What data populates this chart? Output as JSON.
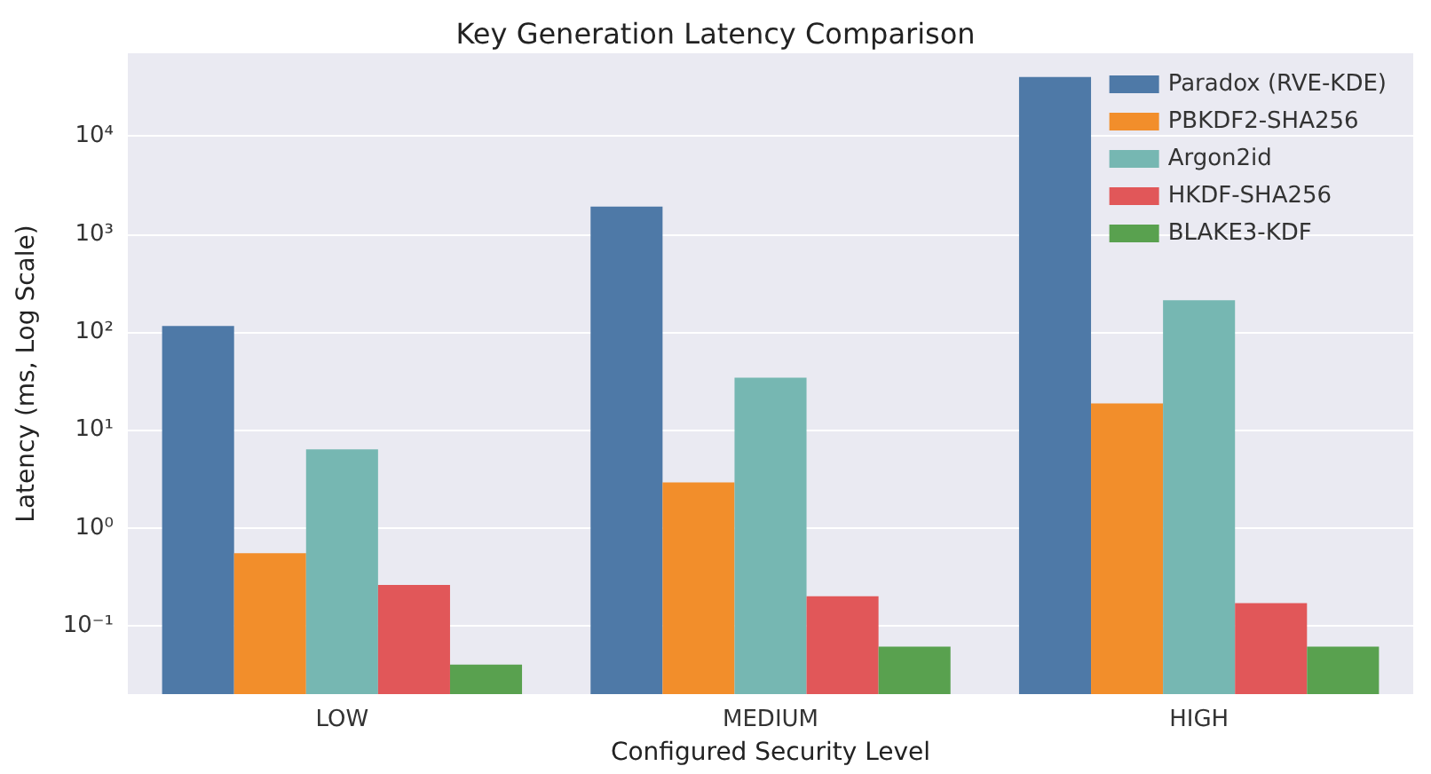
{
  "chart_data": {
    "type": "bar",
    "title": "Key Generation Latency Comparison",
    "xlabel": "Configured Security Level",
    "ylabel": "Latency (ms, Log Scale)",
    "categories": [
      "LOW",
      "MEDIUM",
      "HIGH"
    ],
    "series": [
      {
        "name": "Paradox (RVE-KDE)",
        "color": "#4e79a7",
        "values": [
          115,
          1900,
          40000
        ]
      },
      {
        "name": "PBKDF2-SHA256",
        "color": "#f28e2b",
        "values": [
          0.55,
          2.9,
          18.6
        ]
      },
      {
        "name": "Argon2id",
        "color": "#76b7b2",
        "values": [
          6.3,
          34,
          210
        ]
      },
      {
        "name": "HKDF-SHA256",
        "color": "#e15759",
        "values": [
          0.26,
          0.2,
          0.17
        ]
      },
      {
        "name": "BLAKE3-KDF",
        "color": "#59a14f",
        "values": [
          0.04,
          0.061,
          0.061
        ]
      }
    ],
    "log": "y",
    "ylim": [
      0.02,
      70000
    ],
    "yticks": [
      {
        "value": 0.1,
        "label": "10⁻¹"
      },
      {
        "value": 1,
        "label": "10⁰"
      },
      {
        "value": 10,
        "label": "10¹"
      },
      {
        "value": 100,
        "label": "10²"
      },
      {
        "value": 1000,
        "label": "10³"
      },
      {
        "value": 10000,
        "label": "10⁴"
      }
    ],
    "grid": "y",
    "legend": "top right"
  }
}
